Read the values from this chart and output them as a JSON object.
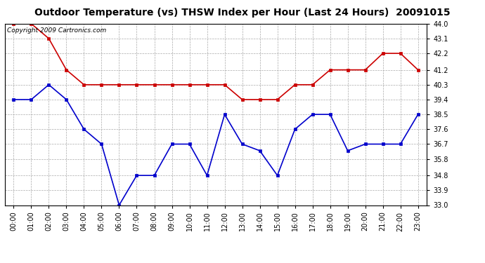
{
  "title": "Outdoor Temperature (vs) THSW Index per Hour (Last 24 Hours)  20091015",
  "copyright_text": "Copyright 2009 Cartronics.com",
  "x_labels": [
    "00:00",
    "01:00",
    "02:00",
    "03:00",
    "04:00",
    "05:00",
    "06:00",
    "07:00",
    "08:00",
    "09:00",
    "10:00",
    "11:00",
    "12:00",
    "13:00",
    "14:00",
    "15:00",
    "16:00",
    "17:00",
    "18:00",
    "19:00",
    "20:00",
    "21:00",
    "22:00",
    "23:00"
  ],
  "red_data": [
    44.0,
    44.0,
    43.1,
    41.2,
    40.3,
    40.3,
    40.3,
    40.3,
    40.3,
    40.3,
    40.3,
    40.3,
    40.3,
    39.4,
    39.4,
    39.4,
    40.3,
    40.3,
    41.2,
    41.2,
    41.2,
    42.2,
    42.2,
    41.2
  ],
  "blue_data": [
    39.4,
    39.4,
    40.3,
    39.4,
    37.6,
    36.7,
    33.0,
    34.8,
    34.8,
    36.7,
    36.7,
    34.8,
    38.5,
    36.7,
    36.3,
    34.8,
    37.6,
    38.5,
    38.5,
    36.3,
    36.7,
    36.7,
    36.7,
    38.5
  ],
  "ylim_min": 33.0,
  "ylim_max": 44.0,
  "y_ticks": [
    33.0,
    33.9,
    34.8,
    35.8,
    36.7,
    37.6,
    38.5,
    39.4,
    40.3,
    41.2,
    42.2,
    43.1,
    44.0
  ],
  "red_color": "#cc0000",
  "blue_color": "#0000cc",
  "background_color": "#ffffff",
  "grid_color": "#aaaaaa",
  "title_fontsize": 10,
  "copyright_fontsize": 6.5,
  "marker_size": 3
}
